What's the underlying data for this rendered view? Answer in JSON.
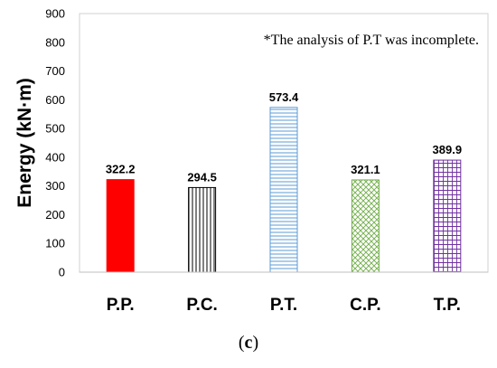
{
  "chart_data": {
    "type": "bar",
    "categories": [
      "P.P.",
      "P.C.",
      "P.T.",
      "C.P.",
      "T.P."
    ],
    "values": [
      322.2,
      294.5,
      573.4,
      321.1,
      389.9
    ],
    "value_labels": [
      "322.2",
      "294.5",
      "573.4",
      "321.1",
      "389.9"
    ],
    "ylabel": "Energy (kN·m)",
    "xlabel": "",
    "ylim": [
      0,
      900
    ],
    "yticks": [
      0,
      100,
      200,
      300,
      400,
      500,
      600,
      700,
      800,
      900
    ],
    "grid": false,
    "annotation": "*The analysis of P.T was incomplete.",
    "bar_styles": [
      {
        "fill": "solid",
        "color": "#ff0000"
      },
      {
        "fill": "vertical-lines",
        "color": "#000000"
      },
      {
        "fill": "horizontal-lines",
        "color": "#5b9bd5"
      },
      {
        "fill": "crosshatch-diagonal",
        "color": "#70ad47"
      },
      {
        "fill": "grid",
        "color": "#7030a0"
      }
    ]
  },
  "caption": {
    "open": "(",
    "letter": "c",
    "close": ")"
  }
}
